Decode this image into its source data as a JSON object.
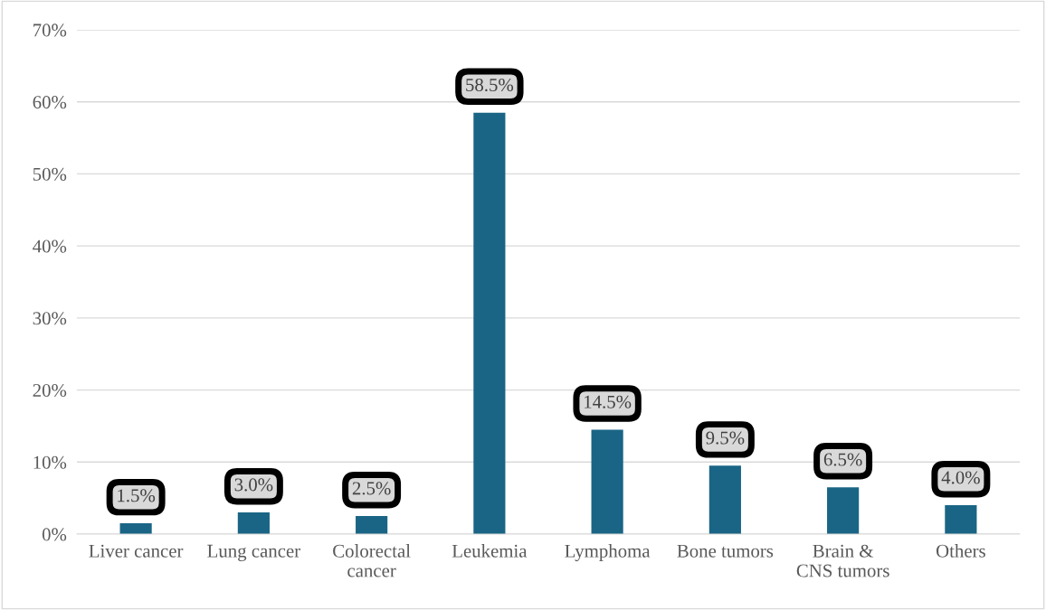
{
  "chart_data": {
    "type": "bar",
    "categories": [
      "Liver cancer",
      "Lung cancer",
      "Colorectal\ncancer",
      "Leukemia",
      "Lymphoma",
      "Bone tumors",
      "Brain &\nCNS tumors",
      "Others"
    ],
    "values": [
      1.5,
      3.0,
      2.5,
      58.5,
      14.5,
      9.5,
      6.5,
      4.0
    ],
    "color": "#1a6585",
    "ylim": [
      0,
      70
    ],
    "yticks": [
      {
        "value": 0,
        "label": "0%"
      },
      {
        "value": 10,
        "label": "10%"
      },
      {
        "value": 20,
        "label": "20%"
      },
      {
        "value": 30,
        "label": "30%"
      },
      {
        "value": 40,
        "label": "40%"
      },
      {
        "value": 50,
        "label": "50%"
      },
      {
        "value": 60,
        "label": "60%"
      },
      {
        "value": 70,
        "label": "70%"
      }
    ],
    "value_labels": [
      "1.5%",
      "3.0%",
      "2.5%",
      "58.5%",
      "14.5%",
      "9.5%",
      "6.5%",
      "4.0%"
    ],
    "grid": "y"
  }
}
